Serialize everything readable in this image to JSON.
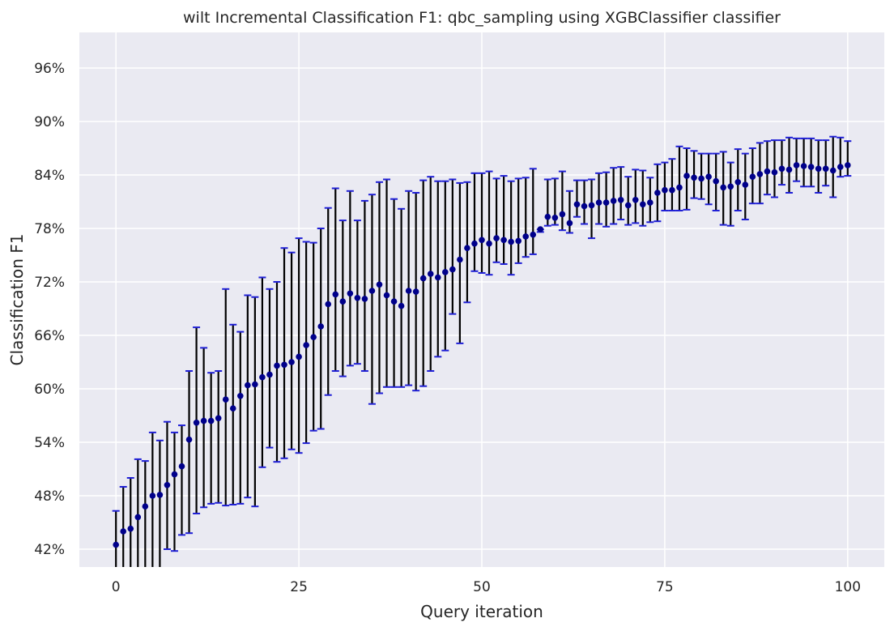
{
  "chart_data": {
    "type": "scatter",
    "title": "wilt Incremental Classification F1: qbc_sampling using XGBClassifier classifier",
    "xlabel": "Query iteration",
    "ylabel": "Classification F1",
    "xlim": [
      -5,
      105
    ],
    "ylim": [
      0.4,
      1.0
    ],
    "x_ticks": [
      0,
      25,
      50,
      75,
      100
    ],
    "x_tick_labels": [
      "0",
      "25",
      "50",
      "75",
      "100"
    ],
    "y_ticks": [
      0.42,
      0.48,
      0.54,
      0.6,
      0.66,
      0.72,
      0.78,
      0.84,
      0.9,
      0.96
    ],
    "y_tick_labels": [
      "42%",
      "48%",
      "54%",
      "60%",
      "66%",
      "72%",
      "78%",
      "84%",
      "90%",
      "96%"
    ],
    "grid": true,
    "colors": {
      "background": "#eaeaf2",
      "grid": "#ffffff",
      "marker": "#00008b",
      "errorbar": "#000000",
      "cap": "#1f1fd6"
    },
    "series": [
      {
        "x": [
          0,
          1,
          2,
          3,
          4,
          5,
          6,
          7,
          8,
          9,
          10,
          11,
          12,
          13,
          14,
          15,
          16,
          17,
          18,
          19,
          20,
          21,
          22,
          23,
          24,
          25,
          26,
          27,
          28,
          29,
          30,
          31,
          32,
          33,
          34,
          35,
          36,
          37,
          38,
          39,
          40,
          41,
          42,
          43,
          44,
          45,
          46,
          47,
          48,
          49,
          50,
          51,
          52,
          53,
          54,
          55,
          56,
          57,
          58,
          59,
          60,
          61,
          62,
          63,
          64,
          65,
          66,
          67,
          68,
          69,
          70,
          71,
          72,
          73,
          74,
          75,
          76,
          77,
          78,
          79,
          80,
          81,
          82,
          83,
          84,
          85,
          86,
          87,
          88,
          89,
          90,
          91,
          92,
          93,
          94,
          95,
          96,
          97,
          98,
          99,
          100
        ],
        "y": [
          0.425,
          0.44,
          0.443,
          0.456,
          0.468,
          0.48,
          0.481,
          0.492,
          0.504,
          0.513,
          0.543,
          0.562,
          0.564,
          0.564,
          0.567,
          0.588,
          0.578,
          0.592,
          0.604,
          0.605,
          0.613,
          0.616,
          0.626,
          0.627,
          0.63,
          0.636,
          0.649,
          0.658,
          0.67,
          0.695,
          0.706,
          0.698,
          0.707,
          0.702,
          0.701,
          0.71,
          0.717,
          0.705,
          0.698,
          0.693,
          0.71,
          0.709,
          0.724,
          0.729,
          0.725,
          0.731,
          0.734,
          0.745,
          0.758,
          0.763,
          0.767,
          0.763,
          0.769,
          0.767,
          0.765,
          0.766,
          0.771,
          0.773,
          0.779,
          0.793,
          0.792,
          0.796,
          0.786,
          0.807,
          0.805,
          0.806,
          0.809,
          0.809,
          0.811,
          0.812,
          0.806,
          0.812,
          0.807,
          0.809,
          0.82,
          0.823,
          0.823,
          0.826,
          0.839,
          0.837,
          0.836,
          0.838,
          0.833,
          0.826,
          0.827,
          0.832,
          0.829,
          0.838,
          0.841,
          0.844,
          0.843,
          0.847,
          0.846,
          0.851,
          0.85,
          0.849,
          0.847,
          0.847,
          0.845,
          0.849,
          0.851
        ],
        "err_low": [
          0.38,
          0.395,
          0.375,
          0.385,
          0.385,
          0.39,
          0.38,
          0.42,
          0.418,
          0.436,
          0.438,
          0.46,
          0.467,
          0.471,
          0.472,
          0.469,
          0.47,
          0.471,
          0.478,
          0.468,
          0.512,
          0.534,
          0.518,
          0.522,
          0.532,
          0.528,
          0.539,
          0.553,
          0.555,
          0.593,
          0.62,
          0.614,
          0.626,
          0.628,
          0.62,
          0.583,
          0.595,
          0.602,
          0.602,
          0.602,
          0.604,
          0.598,
          0.603,
          0.62,
          0.636,
          0.643,
          0.684,
          0.651,
          0.697,
          0.732,
          0.73,
          0.728,
          0.742,
          0.74,
          0.728,
          0.741,
          0.748,
          0.751,
          0.776,
          0.783,
          0.784,
          0.778,
          0.775,
          0.793,
          0.785,
          0.769,
          0.785,
          0.782,
          0.785,
          0.79,
          0.784,
          0.786,
          0.783,
          0.787,
          0.788,
          0.8,
          0.8,
          0.8,
          0.801,
          0.814,
          0.813,
          0.807,
          0.8,
          0.784,
          0.783,
          0.8,
          0.79,
          0.808,
          0.808,
          0.818,
          0.815,
          0.829,
          0.82,
          0.833,
          0.827,
          0.827,
          0.82,
          0.828,
          0.815,
          0.838,
          0.839
        ],
        "err_high": [
          0.463,
          0.49,
          0.5,
          0.521,
          0.519,
          0.551,
          0.542,
          0.563,
          0.551,
          0.559,
          0.62,
          0.669,
          0.646,
          0.618,
          0.62,
          0.712,
          0.672,
          0.664,
          0.705,
          0.703,
          0.725,
          0.712,
          0.72,
          0.758,
          0.753,
          0.769,
          0.765,
          0.764,
          0.78,
          0.803,
          0.825,
          0.789,
          0.822,
          0.789,
          0.811,
          0.818,
          0.832,
          0.835,
          0.813,
          0.802,
          0.822,
          0.82,
          0.834,
          0.838,
          0.833,
          0.833,
          0.835,
          0.831,
          0.832,
          0.842,
          0.842,
          0.844,
          0.836,
          0.839,
          0.833,
          0.836,
          0.837,
          0.847,
          0.779,
          0.835,
          0.836,
          0.844,
          0.822,
          0.834,
          0.834,
          0.835,
          0.842,
          0.843,
          0.848,
          0.849,
          0.838,
          0.846,
          0.845,
          0.837,
          0.852,
          0.854,
          0.858,
          0.872,
          0.87,
          0.867,
          0.864,
          0.864,
          0.864,
          0.866,
          0.854,
          0.869,
          0.864,
          0.87,
          0.876,
          0.878,
          0.879,
          0.879,
          0.882,
          0.881,
          0.881,
          0.881,
          0.879,
          0.879,
          0.883,
          0.882,
          0.878
        ]
      }
    ]
  }
}
